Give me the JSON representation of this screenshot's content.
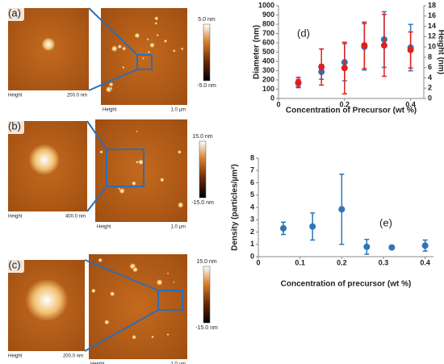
{
  "images": [
    {
      "label": "(a)",
      "inset_caption": "Height",
      "inset_scale": "200.0 nm",
      "caption": "Height",
      "scale": "1.0 µm",
      "colorbar_max": "5.0 nm",
      "colorbar_min": "-5.0 nm"
    },
    {
      "label": "(b)",
      "inset_caption": "Height",
      "inset_scale": "400.0 nm",
      "caption": "Height",
      "scale": "1.0 µm",
      "colorbar_max": "15.0 nm",
      "colorbar_min": "-15.0 nm"
    },
    {
      "label": "(c)",
      "inset_caption": "Height",
      "inset_scale": "200.0 nm",
      "caption": "Height",
      "scale": "1.0 µm",
      "colorbar_max": "15.0 nm",
      "colorbar_min": "-15.0 nm"
    }
  ],
  "chart_data": [
    {
      "type": "scatter",
      "annotation": "(d)",
      "xlabel": "Concentration of Precursor (wt %)",
      "ylabel": "Diameter (nm)",
      "y2label": "Height (nm)",
      "ylabel_color": "#2e75b6",
      "y2label_color": "#e02020",
      "x": [
        0.06,
        0.13,
        0.2,
        0.26,
        0.32,
        0.4
      ],
      "series": [
        {
          "color": "#2e75b6",
          "values": [
            165,
            287,
            390,
            556,
            635,
            548
          ],
          "errors": [
            40,
            80,
            200,
            250,
            300,
            250
          ]
        },
        {
          "color": "#e02020",
          "axis": "y2",
          "values": [
            3.1,
            6.1,
            5.9,
            10.3,
            10.3,
            9.4
          ],
          "errors": [
            1,
            3.5,
            5,
            4.5,
            6,
            3.5
          ]
        }
      ],
      "xlim": [
        0,
        0.44
      ],
      "xticks": [
        0,
        0.2,
        0.4
      ],
      "ylim": [
        0,
        1000
      ],
      "yticks": [
        0,
        100,
        200,
        300,
        400,
        500,
        600,
        700,
        800,
        900,
        1000
      ],
      "y2lim": [
        0,
        18
      ],
      "y2ticks": [
        0,
        2,
        4,
        6,
        8,
        10,
        12,
        14,
        16,
        18
      ]
    },
    {
      "type": "scatter",
      "annotation": "(e)",
      "xlabel": "Concentration of precursor (wt %)",
      "ylabel": "Density (particles/µm²)",
      "x": [
        0.06,
        0.13,
        0.2,
        0.26,
        0.32,
        0.4
      ],
      "series": [
        {
          "color": "#2e75b6",
          "values": [
            2.3,
            2.45,
            3.85,
            0.8,
            0.75,
            0.9
          ],
          "errors": [
            0.5,
            1.1,
            2.85,
            0.6,
            0.15,
            0.45
          ]
        }
      ],
      "xlim": [
        0,
        0.42
      ],
      "xticks": [
        0,
        0.1,
        0.2,
        0.3,
        0.4
      ],
      "ylim": [
        0,
        8
      ],
      "yticks": [
        0,
        1,
        2,
        3,
        4,
        5,
        6,
        7,
        8
      ]
    }
  ]
}
